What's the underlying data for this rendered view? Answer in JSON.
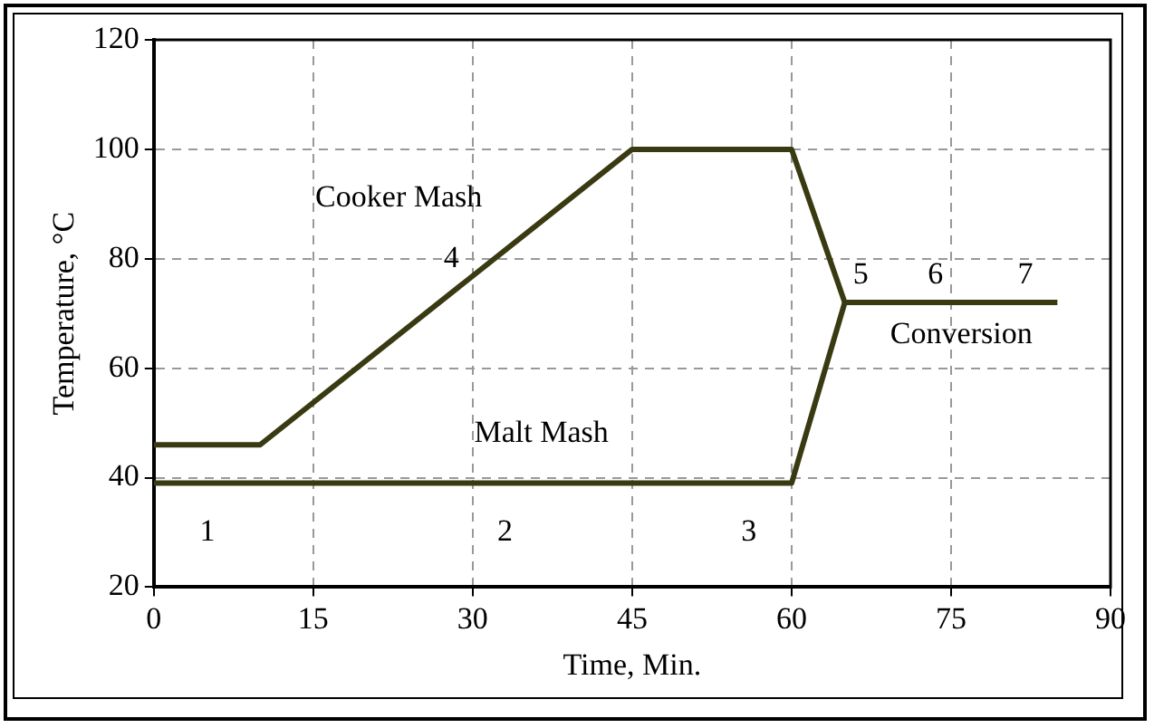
{
  "chart_data": {
    "type": "line",
    "xlabel": "Time, Min.",
    "ylabel": "Temperature, °C",
    "xlim": [
      0,
      90
    ],
    "xticks": [
      0,
      15,
      30,
      45,
      60,
      75,
      90
    ],
    "ylim": [
      20,
      120
    ],
    "yticks": [
      20,
      40,
      60,
      80,
      100,
      120
    ],
    "grid": true,
    "legend": false,
    "marker": "none",
    "line_style": "solid",
    "series": [
      {
        "color": "#3a3a12",
        "x": [
          0,
          10,
          45,
          60,
          65,
          85
        ],
        "values": [
          46,
          46,
          100,
          100,
          72,
          72
        ]
      },
      {
        "color": "#3a3a12",
        "x": [
          0,
          60,
          65
        ],
        "values": [
          39,
          39,
          72
        ]
      }
    ],
    "annotations": [
      "Cooker Mash",
      "4",
      "Malt Mash",
      "1",
      "2",
      "3",
      "5",
      "6",
      "7",
      "Conversion"
    ]
  }
}
